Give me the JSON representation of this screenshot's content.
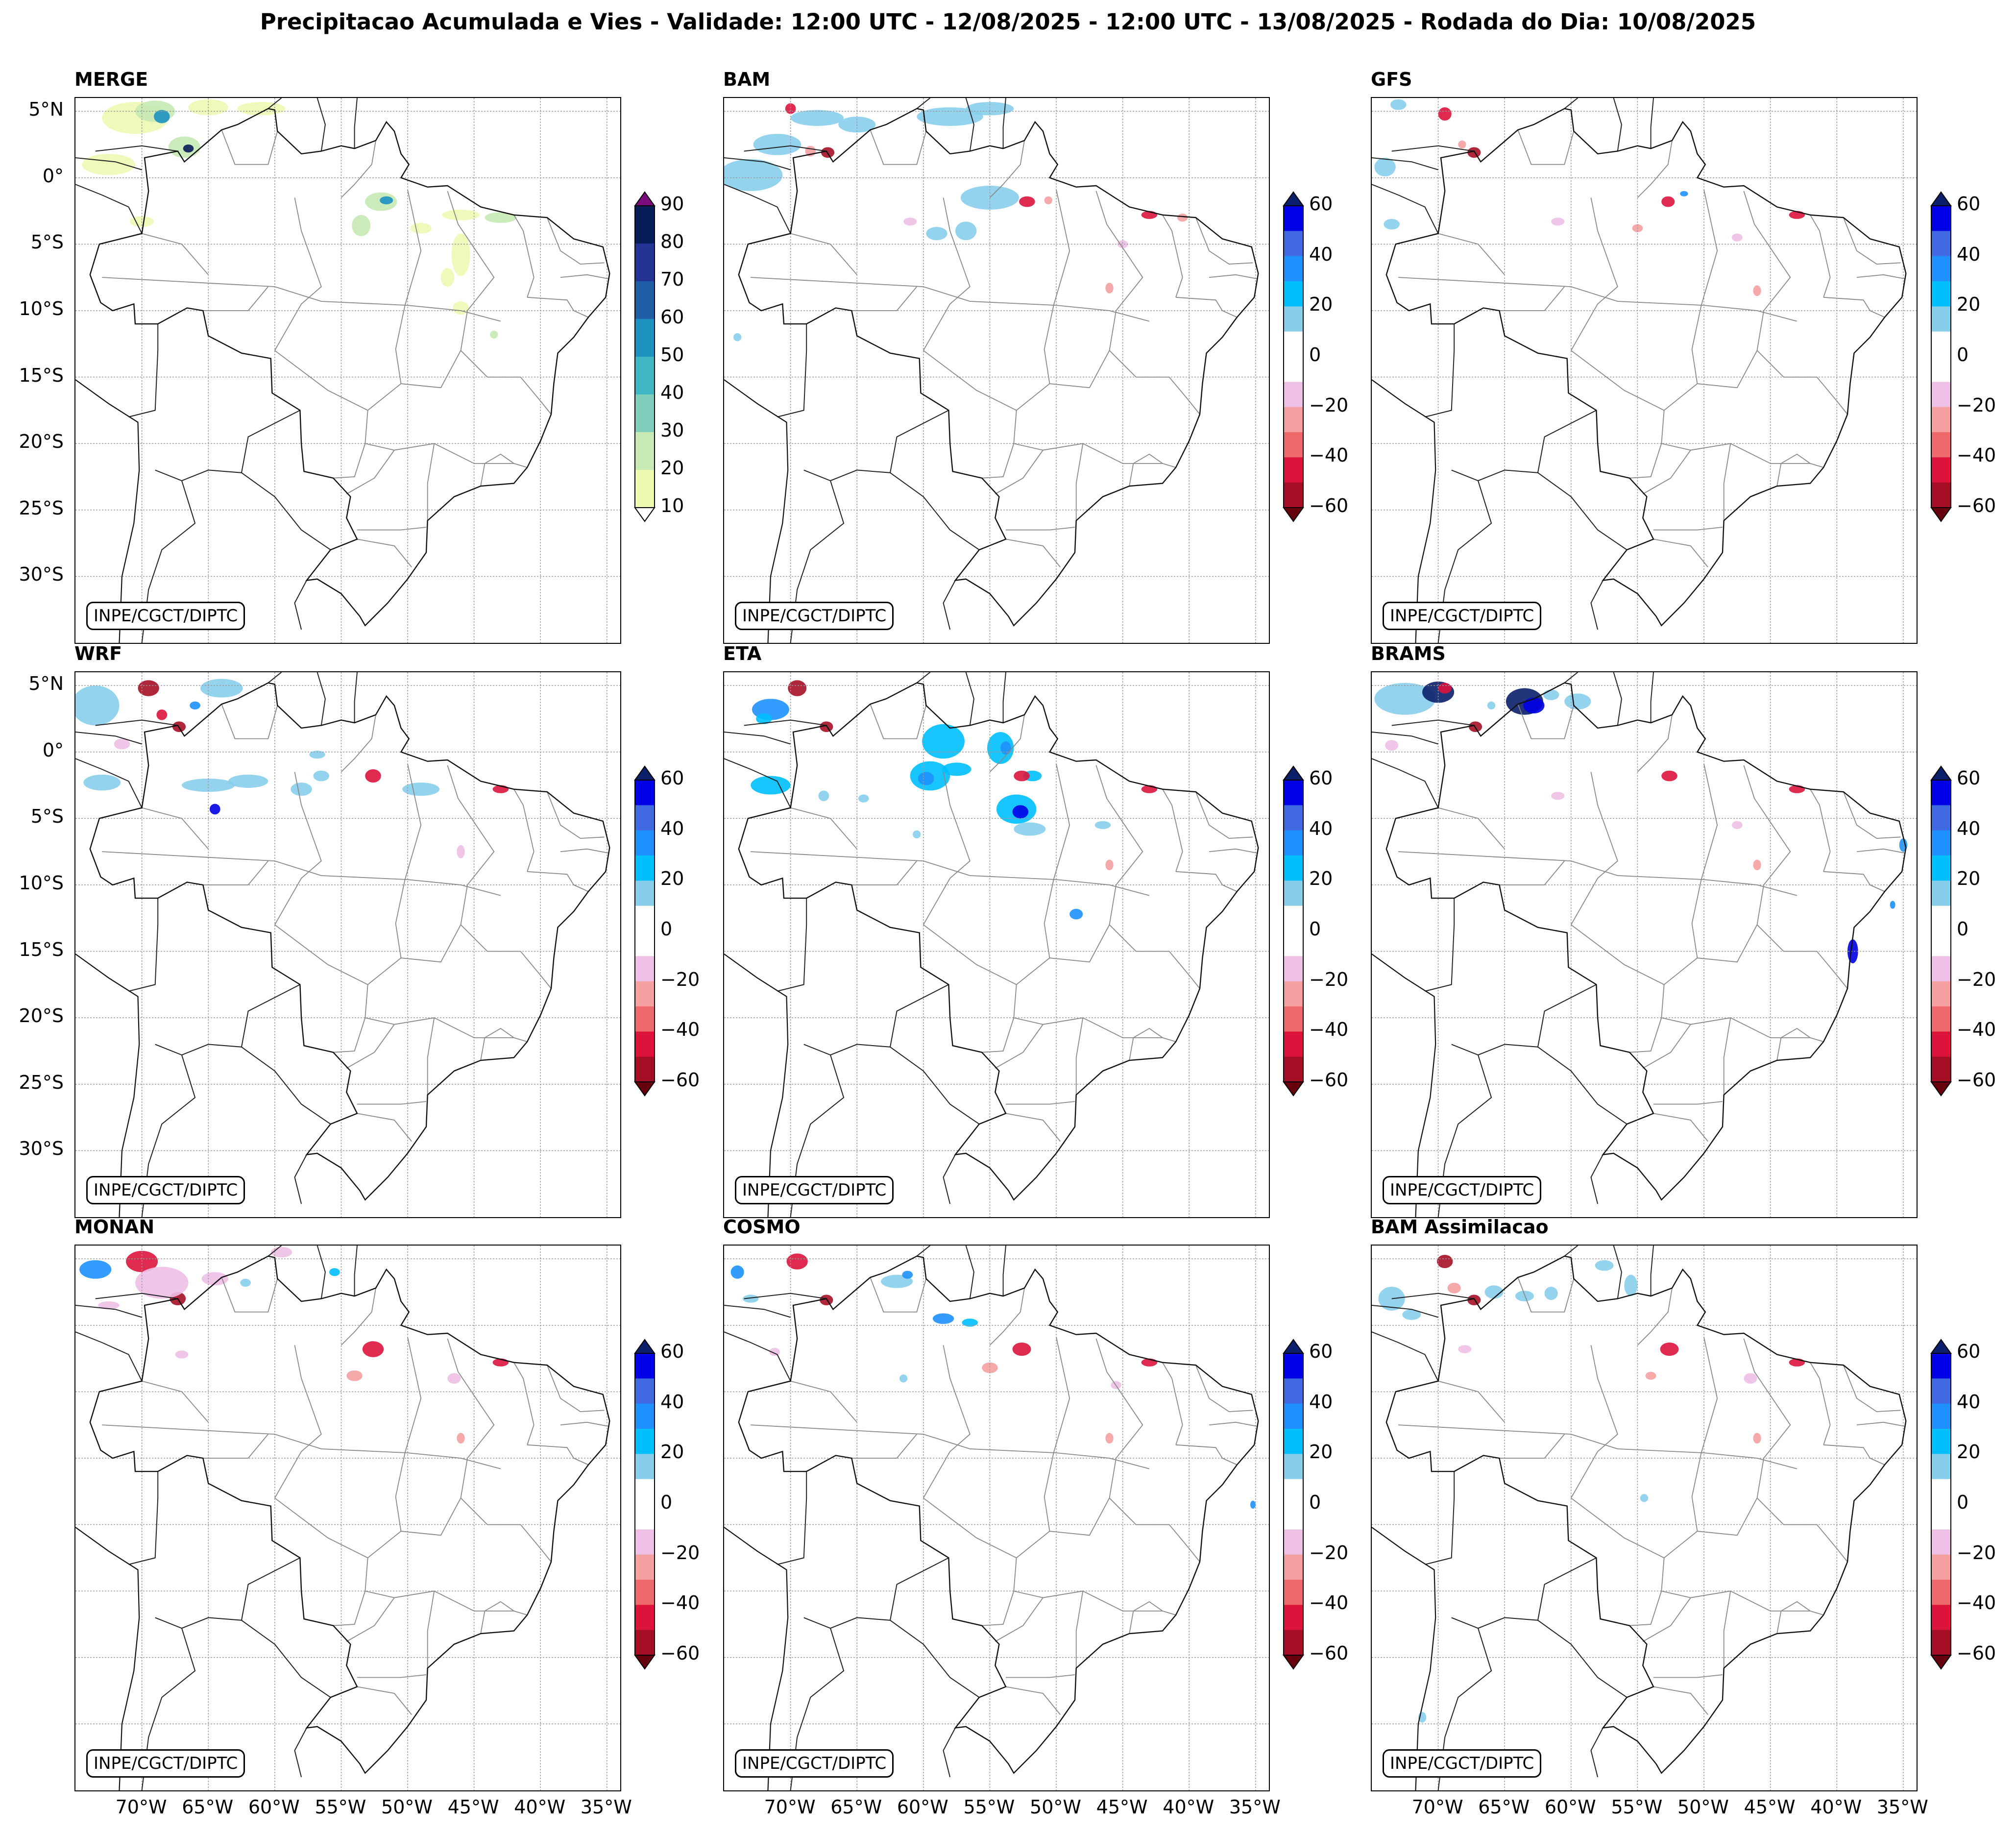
{
  "title": "Precipitacao Acumulada e Vies - Validade: 12:00 UTC - 12/08/2025 - 12:00 UTC - 13/08/2025 - Rodada do Dia: 10/08/2025",
  "credit": "INPE/CGCT/DIPTC",
  "lat_labels": [
    "5°N",
    "0°",
    "5°S",
    "10°S",
    "15°S",
    "20°S",
    "25°S",
    "30°S"
  ],
  "lon_labels": [
    "70°W",
    "65°W",
    "60°W",
    "55°W",
    "50°W",
    "45°W",
    "40°W",
    "35°W"
  ],
  "colorbars": {
    "precip": {
      "labels": [
        "90",
        "80",
        "70",
        "60",
        "50",
        "40",
        "30",
        "20",
        "10"
      ],
      "colors": [
        "#081d58",
        "#253494",
        "#225ea8",
        "#1d91c0",
        "#41b6c4",
        "#7fcdbb",
        "#c7e9b4",
        "#edf8b1"
      ],
      "over": "#7b0c7e",
      "under": "#ffffff"
    },
    "bias": {
      "labels": [
        "60",
        "40",
        "20",
        "0",
        "−20",
        "−40",
        "−60"
      ],
      "colors": [
        "#0000e6",
        "#4169e1",
        "#1e90ff",
        "#00bfff",
        "#87ceeb",
        "#ffffff",
        "#ffffff",
        "#eec0e6",
        "#f4a0a0",
        "#ee6a6a",
        "#dc143c",
        "#a50f26"
      ],
      "over": "#0b1f6a",
      "under": "#67000d"
    }
  },
  "panels": [
    {
      "name": "MERGE",
      "cbar": "precip"
    },
    {
      "name": "BAM",
      "cbar": "bias"
    },
    {
      "name": "GFS",
      "cbar": "bias"
    },
    {
      "name": "WRF",
      "cbar": "bias"
    },
    {
      "name": "ETA",
      "cbar": "bias"
    },
    {
      "name": "BRAMS",
      "cbar": "bias"
    },
    {
      "name": "MONAN",
      "cbar": "bias"
    },
    {
      "name": "COSMO",
      "cbar": "bias"
    },
    {
      "name": "BAM Assimilacao",
      "cbar": "bias"
    }
  ]
}
